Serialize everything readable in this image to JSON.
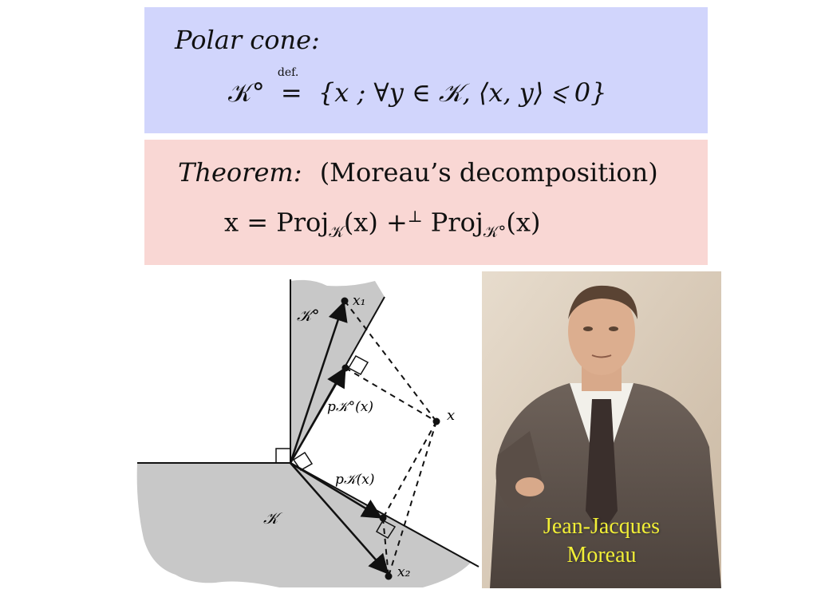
{
  "polar": {
    "heading": "Polar cone:",
    "lhs": "𝒦°",
    "def": "def.",
    "eq": "=",
    "rhs": "{x ; ∀y ∈ 𝒦, ⟨x, y⟩ ⩽ 0}"
  },
  "theorem": {
    "heading": "Theorem:",
    "subtitle": "(Moreau’s decomposition)",
    "formula_lhs": "x = Proj",
    "sub1": "𝒦",
    "mid": "(x) +",
    "perp": "⊥",
    "proj2": " Proj",
    "sub2": "𝒦°",
    "end": "(x)"
  },
  "figure": {
    "label_polar": "𝒦°",
    "label_cone": "𝒦",
    "label_x1": "x₁",
    "label_x2": "x₂",
    "label_x": "x",
    "label_pkpolar": "p𝒦°(x)",
    "label_pk": "p𝒦(x)"
  },
  "caption": {
    "line1": "Jean-Jacques",
    "line2": "Moreau"
  },
  "colors": {
    "polar_box": "#d1d5fc",
    "theorem_box": "#f9d7d4",
    "caption": "#f2ee36",
    "cone_fill": "#c8c8c8"
  }
}
